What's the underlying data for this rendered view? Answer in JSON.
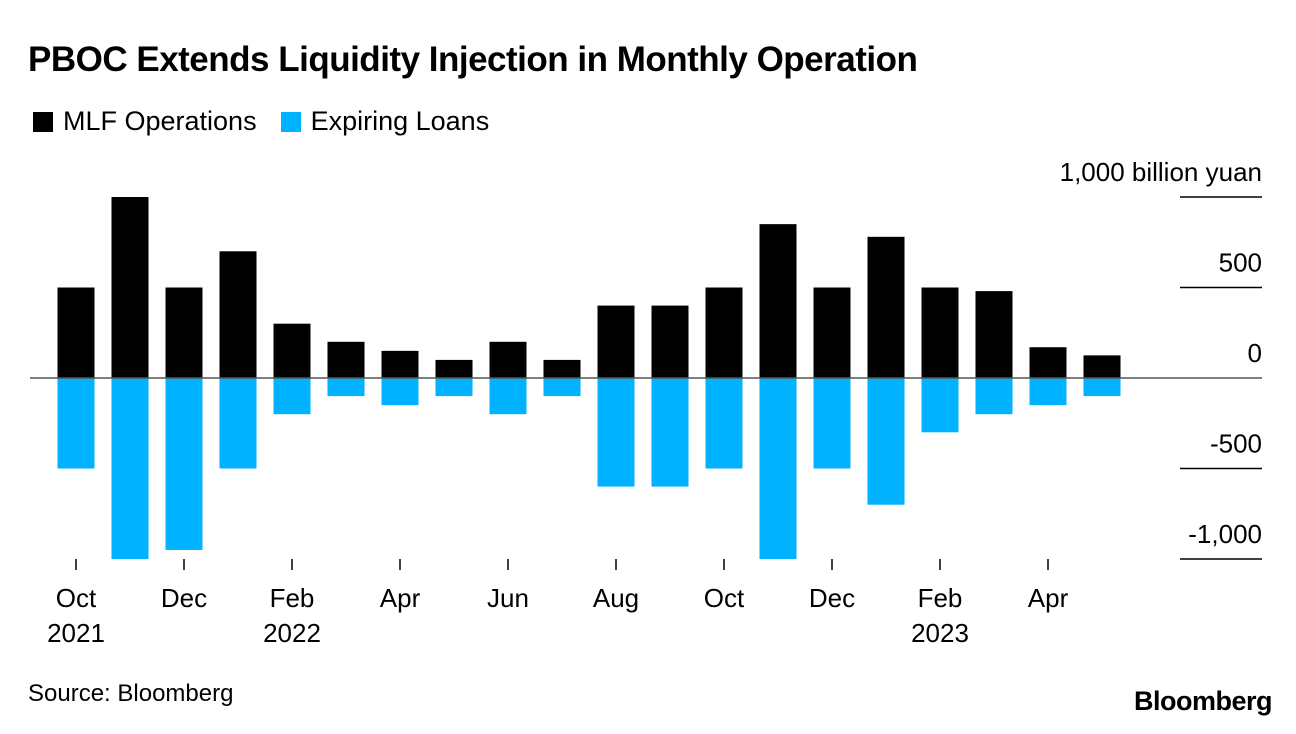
{
  "chart_data": {
    "type": "bar",
    "title": "PBOC Extends Liquidity Injection in Monthly Operation",
    "ylabel": "1,000 billion yuan",
    "ylim": [
      -1000,
      1000
    ],
    "yticks": [
      1000,
      500,
      0,
      -500,
      -1000
    ],
    "ytick_labels": [
      "1,000 billion yuan",
      "500",
      "0",
      "-500",
      "-1,000"
    ],
    "categories": [
      "Oct 2021",
      "Nov 2021",
      "Dec 2021",
      "Jan 2022",
      "Feb 2022",
      "Mar 2022",
      "Apr 2022",
      "May 2022",
      "Jun 2022",
      "Jul 2022",
      "Aug 2022",
      "Sep 2022",
      "Oct 2022",
      "Nov 2022",
      "Dec 2022",
      "Jan 2023",
      "Feb 2023",
      "Mar 2023",
      "Apr 2023",
      "May 2023"
    ],
    "xtick_labels": [
      {
        "index": 0,
        "month": "Oct",
        "year": "2021"
      },
      {
        "index": 2,
        "month": "Dec",
        "year": ""
      },
      {
        "index": 4,
        "month": "Feb",
        "year": "2022"
      },
      {
        "index": 6,
        "month": "Apr",
        "year": ""
      },
      {
        "index": 8,
        "month": "Jun",
        "year": ""
      },
      {
        "index": 10,
        "month": "Aug",
        "year": ""
      },
      {
        "index": 12,
        "month": "Oct",
        "year": ""
      },
      {
        "index": 14,
        "month": "Dec",
        "year": ""
      },
      {
        "index": 16,
        "month": "Feb",
        "year": "2023"
      },
      {
        "index": 18,
        "month": "Apr",
        "year": ""
      }
    ],
    "series": [
      {
        "name": "MLF Operations",
        "color": "#000000",
        "values": [
          500,
          1000,
          500,
          700,
          300,
          200,
          150,
          100,
          200,
          100,
          400,
          400,
          500,
          850,
          500,
          780,
          500,
          480,
          170,
          125
        ]
      },
      {
        "name": "Expiring Loans",
        "color": "#00b2ff",
        "values": [
          -500,
          -1000,
          -950,
          -500,
          -200,
          -100,
          -150,
          -100,
          -200,
          -100,
          -600,
          -600,
          -500,
          -1000,
          -500,
          -700,
          -300,
          -200,
          -150,
          -100
        ]
      }
    ]
  },
  "legend": {
    "items": [
      {
        "label": "MLF Operations",
        "color": "#000000"
      },
      {
        "label": "Expiring Loans",
        "color": "#00b2ff"
      }
    ]
  },
  "footer": {
    "source": "Source: Bloomberg",
    "brand": "Bloomberg"
  }
}
